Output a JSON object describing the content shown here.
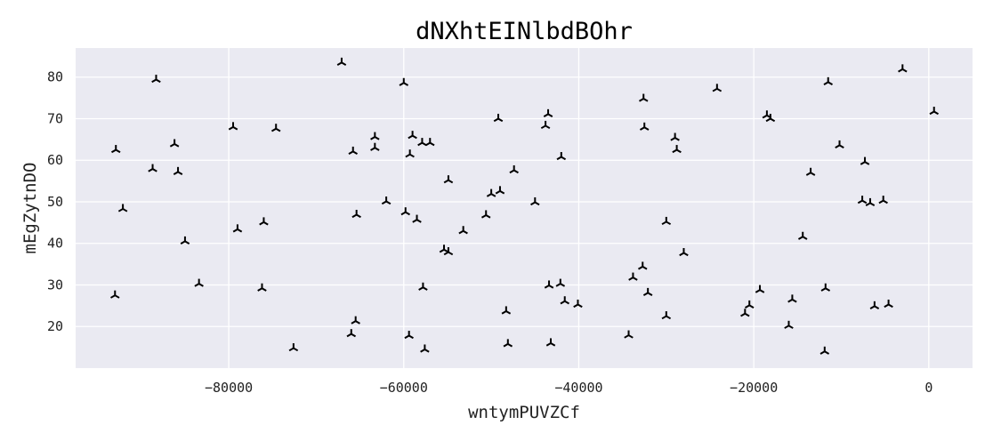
{
  "chart_data": {
    "type": "scatter",
    "title": "dNXhtEINlbdBOhr",
    "xlabel": "wntymPUVZCf",
    "ylabel": "mEgZytnDO",
    "xlim": [
      -97500,
      5000
    ],
    "ylim": [
      10,
      87
    ],
    "xticks": [
      -80000,
      -60000,
      -40000,
      -20000,
      0
    ],
    "xtick_labels": [
      "−80000",
      "−60000",
      "−40000",
      "−20000",
      "0"
    ],
    "yticks": [
      20,
      30,
      40,
      50,
      60,
      70,
      80
    ],
    "ytick_labels": [
      "20",
      "30",
      "40",
      "50",
      "60",
      "70",
      "80"
    ],
    "grid": true,
    "marker": "tri_down",
    "color": "#000000",
    "background": "#eaeaf2",
    "points": [
      {
        "x": -92900,
        "y": 62.5
      },
      {
        "x": -92100,
        "y": 48.3
      },
      {
        "x": -93000,
        "y": 27.5
      },
      {
        "x": -88300,
        "y": 79.4
      },
      {
        "x": -88700,
        "y": 57.9
      },
      {
        "x": -86200,
        "y": 63.9
      },
      {
        "x": -85800,
        "y": 57.2
      },
      {
        "x": -85000,
        "y": 40.5
      },
      {
        "x": -83400,
        "y": 30.3
      },
      {
        "x": -79500,
        "y": 68.0
      },
      {
        "x": -79000,
        "y": 43.4
      },
      {
        "x": -76000,
        "y": 45.1
      },
      {
        "x": -76200,
        "y": 29.2
      },
      {
        "x": -74600,
        "y": 67.6
      },
      {
        "x": -72600,
        "y": 14.8
      },
      {
        "x": -67100,
        "y": 83.5
      },
      {
        "x": -65800,
        "y": 62.1
      },
      {
        "x": -65400,
        "y": 46.9
      },
      {
        "x": -65500,
        "y": 21.3
      },
      {
        "x": -66000,
        "y": 18.2
      },
      {
        "x": -63300,
        "y": 65.6
      },
      {
        "x": -63300,
        "y": 63.0
      },
      {
        "x": -62000,
        "y": 50.1
      },
      {
        "x": -60000,
        "y": 78.6
      },
      {
        "x": -59300,
        "y": 61.4
      },
      {
        "x": -59000,
        "y": 65.9
      },
      {
        "x": -59800,
        "y": 47.5
      },
      {
        "x": -58500,
        "y": 45.7
      },
      {
        "x": -59400,
        "y": 17.8
      },
      {
        "x": -57900,
        "y": 64.2
      },
      {
        "x": -57000,
        "y": 64.2
      },
      {
        "x": -57800,
        "y": 29.4
      },
      {
        "x": -57600,
        "y": 14.5
      },
      {
        "x": -55400,
        "y": 38.5
      },
      {
        "x": -54900,
        "y": 55.2
      },
      {
        "x": -54900,
        "y": 37.9
      },
      {
        "x": -53200,
        "y": 43.0
      },
      {
        "x": -50600,
        "y": 46.8
      },
      {
        "x": -50000,
        "y": 51.9
      },
      {
        "x": -49000,
        "y": 52.6
      },
      {
        "x": -49200,
        "y": 70.0
      },
      {
        "x": -48300,
        "y": 23.7
      },
      {
        "x": -48100,
        "y": 15.8
      },
      {
        "x": -47400,
        "y": 57.6
      },
      {
        "x": -45000,
        "y": 49.9
      },
      {
        "x": -43800,
        "y": 68.3
      },
      {
        "x": -43500,
        "y": 71.1
      },
      {
        "x": -43400,
        "y": 29.9
      },
      {
        "x": -43200,
        "y": 16.0
      },
      {
        "x": -42100,
        "y": 30.3
      },
      {
        "x": -42000,
        "y": 60.8
      },
      {
        "x": -41600,
        "y": 26.1
      },
      {
        "x": -40100,
        "y": 25.3
      },
      {
        "x": -34300,
        "y": 17.9
      },
      {
        "x": -33800,
        "y": 31.8
      },
      {
        "x": -32600,
        "y": 74.8
      },
      {
        "x": -32700,
        "y": 34.4
      },
      {
        "x": -32500,
        "y": 67.9
      },
      {
        "x": -32100,
        "y": 28.1
      },
      {
        "x": -30000,
        "y": 45.2
      },
      {
        "x": -30000,
        "y": 22.5
      },
      {
        "x": -29000,
        "y": 65.4
      },
      {
        "x": -28800,
        "y": 62.5
      },
      {
        "x": -28000,
        "y": 37.7
      },
      {
        "x": -24200,
        "y": 77.2
      },
      {
        "x": -21000,
        "y": 23.1
      },
      {
        "x": -20500,
        "y": 25.1
      },
      {
        "x": -19300,
        "y": 28.8
      },
      {
        "x": -18500,
        "y": 70.8
      },
      {
        "x": -18100,
        "y": 70.0
      },
      {
        "x": -16000,
        "y": 20.2
      },
      {
        "x": -15600,
        "y": 26.5
      },
      {
        "x": -14400,
        "y": 41.6
      },
      {
        "x": -13500,
        "y": 57.0
      },
      {
        "x": -11800,
        "y": 29.2
      },
      {
        "x": -11500,
        "y": 78.8
      },
      {
        "x": -11900,
        "y": 14.0
      },
      {
        "x": -10200,
        "y": 63.6
      },
      {
        "x": -7600,
        "y": 50.3
      },
      {
        "x": -7300,
        "y": 59.6
      },
      {
        "x": -6700,
        "y": 49.7
      },
      {
        "x": -6200,
        "y": 24.9
      },
      {
        "x": -5200,
        "y": 50.3
      },
      {
        "x": -4600,
        "y": 25.3
      },
      {
        "x": -3000,
        "y": 81.9
      },
      {
        "x": 600,
        "y": 71.7
      }
    ]
  }
}
